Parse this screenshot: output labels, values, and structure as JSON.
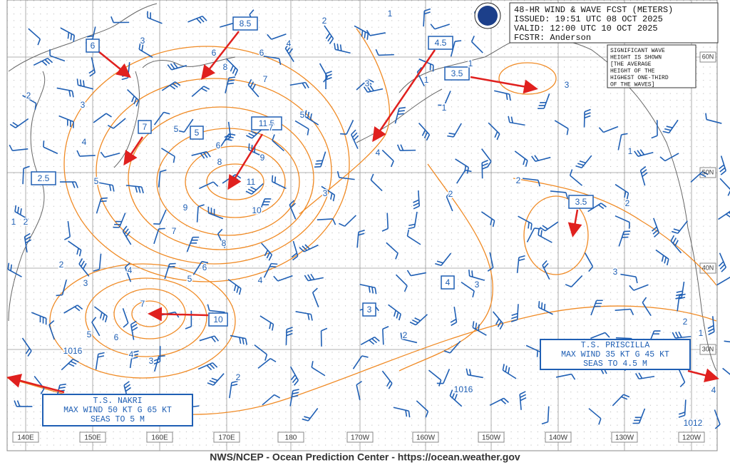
{
  "header": {
    "lines": [
      "48-HR WIND & WAVE FCST (METERS)",
      "ISSUED: 19:51 UTC 08 OCT 2025",
      "VALID:  12:00 UTC 10 OCT 2025",
      "FCSTR:  Anderson"
    ]
  },
  "note": [
    "SIGNIFICANT WAVE",
    "HEIGHT IS SHOWN",
    "[THE AVERAGE",
    "HEIGHT OF THE",
    "HIGHEST ONE-THIRD",
    "OF THE WAVES]"
  ],
  "boxed_heights": [
    "8.5",
    "6",
    "4.5",
    "3.5",
    "7",
    "5",
    "11.5",
    "2.5",
    "3.5",
    "4",
    "3",
    "10"
  ],
  "contour_labels": [
    "2",
    "1",
    "3",
    "6",
    "8",
    "6",
    "4",
    "7",
    "3",
    "5",
    "6",
    "8",
    "9",
    "11",
    "10",
    "7",
    "5",
    "3",
    "4",
    "3",
    "2",
    "2",
    "2",
    "3",
    "1",
    "3",
    "1",
    "1",
    "1",
    "2",
    "5",
    "4",
    "9",
    "7",
    "8",
    "6",
    "4",
    "5",
    "4",
    "3",
    "2",
    "1",
    "2",
    "5",
    "6",
    "7",
    "4",
    "3",
    "2",
    "2",
    "3",
    "1",
    "2",
    "4"
  ],
  "pressure_labels": [
    "1016",
    "1016",
    "1012"
  ],
  "storms": [
    {
      "lines": [
        "T.S. NAKRI",
        "MAX WIND 50 KT G 65 KT",
        "SEAS TO 5 M"
      ]
    },
    {
      "lines": [
        "T.S. PRISCILLA",
        "MAX WIND 35 KT G 45 KT",
        "SEAS TO 4.5 M"
      ]
    }
  ],
  "longitudes": [
    "140E",
    "150E",
    "160E",
    "170E",
    "180",
    "170W",
    "160W",
    "150W",
    "140W",
    "130W",
    "120W"
  ],
  "latitudes": [
    "60N",
    "50N",
    "40N",
    "30N"
  ],
  "footer": "NWS/NCEP - Ocean Prediction Center - https://ocean.weather.gov"
}
